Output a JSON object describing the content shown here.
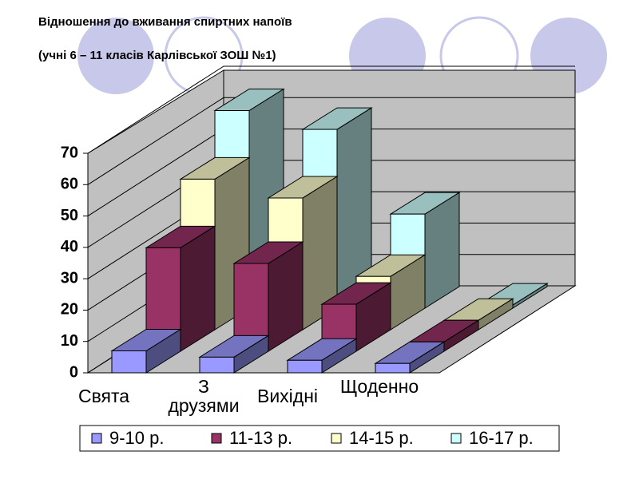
{
  "chart_data": {
    "type": "bar3d",
    "title": "Відношення до вживання спиртних напоїв",
    "subtitle": "(учні 6 – 11 класів Карлівської ЗОШ №1)",
    "categories": [
      "Свята",
      "З друзями",
      "Вихідні",
      "Щоденно"
    ],
    "series": [
      {
        "name": "9-10 р.",
        "color": "#9999ff",
        "values": [
          7,
          5,
          4,
          3
        ]
      },
      {
        "name": "11-13 р.",
        "color": "#993366",
        "values": [
          33,
          28,
          15,
          3
        ]
      },
      {
        "name": "14-15 р.",
        "color": "#ffffcc",
        "values": [
          48,
          42,
          17,
          3
        ]
      },
      {
        "name": "16-17 р.",
        "color": "#ccffff",
        "values": [
          63,
          57,
          30,
          1
        ]
      }
    ],
    "ylim": [
      0,
      70
    ],
    "yticks": [
      0,
      10,
      20,
      30,
      40,
      50,
      60,
      70
    ],
    "grid": true
  }
}
